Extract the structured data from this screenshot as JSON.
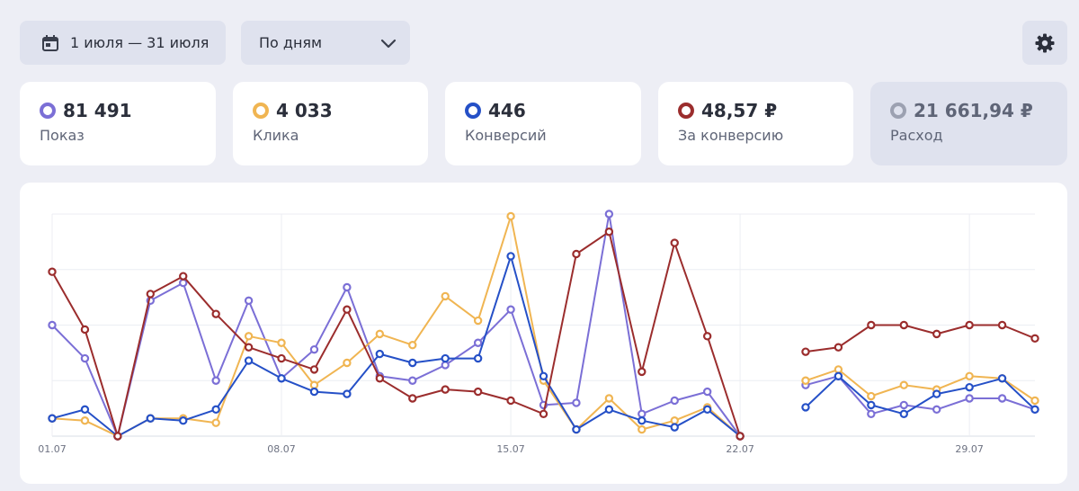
{
  "toolbar": {
    "date_range_label": "1 июля — 31 июля",
    "date_icon": "calendar-icon",
    "grouping_label": "По дням",
    "grouping_icon": "chevron-down-icon",
    "settings_icon": "gear-icon"
  },
  "metrics": [
    {
      "value": "81 491",
      "label": "Показ",
      "color": "#7b6fd6",
      "active": true
    },
    {
      "value": "4 033",
      "label": "Клика",
      "color": "#f0b552",
      "active": true
    },
    {
      "value": "446",
      "label": "Конверсий",
      "color": "#2550c7",
      "active": true
    },
    {
      "value": "48,57 ₽",
      "label": "За конверсию",
      "color": "#9b2d2d",
      "active": true
    },
    {
      "value": "21 661,94 ₽",
      "label": "Расход",
      "color": "#9ca1b1",
      "active": false
    }
  ],
  "chart_data": {
    "type": "line",
    "x": [
      1,
      2,
      3,
      4,
      5,
      6,
      7,
      8,
      9,
      10,
      11,
      12,
      13,
      14,
      15,
      16,
      17,
      18,
      19,
      20,
      21,
      22,
      23,
      24,
      25,
      26,
      27,
      28,
      29,
      30,
      31
    ],
    "x_tick_labels": [
      "01.07",
      "08.07",
      "15.07",
      "22.07",
      "29.07"
    ],
    "x_tick_positions": [
      1,
      8,
      15,
      22,
      29
    ],
    "ylim": [
      0,
      100
    ],
    "grid": true,
    "series": [
      {
        "key": "impressions",
        "color": "#7b6fd6",
        "values": [
          50,
          35,
          0,
          61,
          69,
          25,
          61,
          26,
          39,
          67,
          27,
          25,
          32,
          42,
          57,
          14,
          15,
          100,
          10,
          16,
          20,
          0,
          null,
          23,
          27,
          10,
          14,
          12,
          17,
          17,
          12
        ]
      },
      {
        "key": "clicks",
        "color": "#f0b552",
        "values": [
          8,
          7,
          0,
          8,
          8,
          6,
          45,
          42,
          23,
          33,
          46,
          41,
          63,
          52,
          99,
          25,
          3,
          17,
          3,
          7,
          13,
          0,
          null,
          25,
          30,
          18,
          23,
          21,
          27,
          26,
          16
        ]
      },
      {
        "key": "conversions",
        "color": "#2550c7",
        "values": [
          8,
          12,
          0,
          8,
          7,
          12,
          34,
          26,
          20,
          19,
          37,
          33,
          35,
          35,
          81,
          27,
          3,
          12,
          7,
          4,
          12,
          0,
          null,
          13,
          27,
          14,
          10,
          19,
          22,
          26,
          12
        ]
      },
      {
        "key": "cost_per_conversion",
        "color": "#9b2d2d",
        "values": [
          74,
          48,
          0,
          64,
          72,
          55,
          40,
          35,
          30,
          57,
          26,
          17,
          21,
          20,
          16,
          10,
          82,
          92,
          29,
          87,
          45,
          0,
          null,
          38,
          40,
          50,
          50,
          46,
          50,
          50,
          44
        ]
      }
    ]
  }
}
